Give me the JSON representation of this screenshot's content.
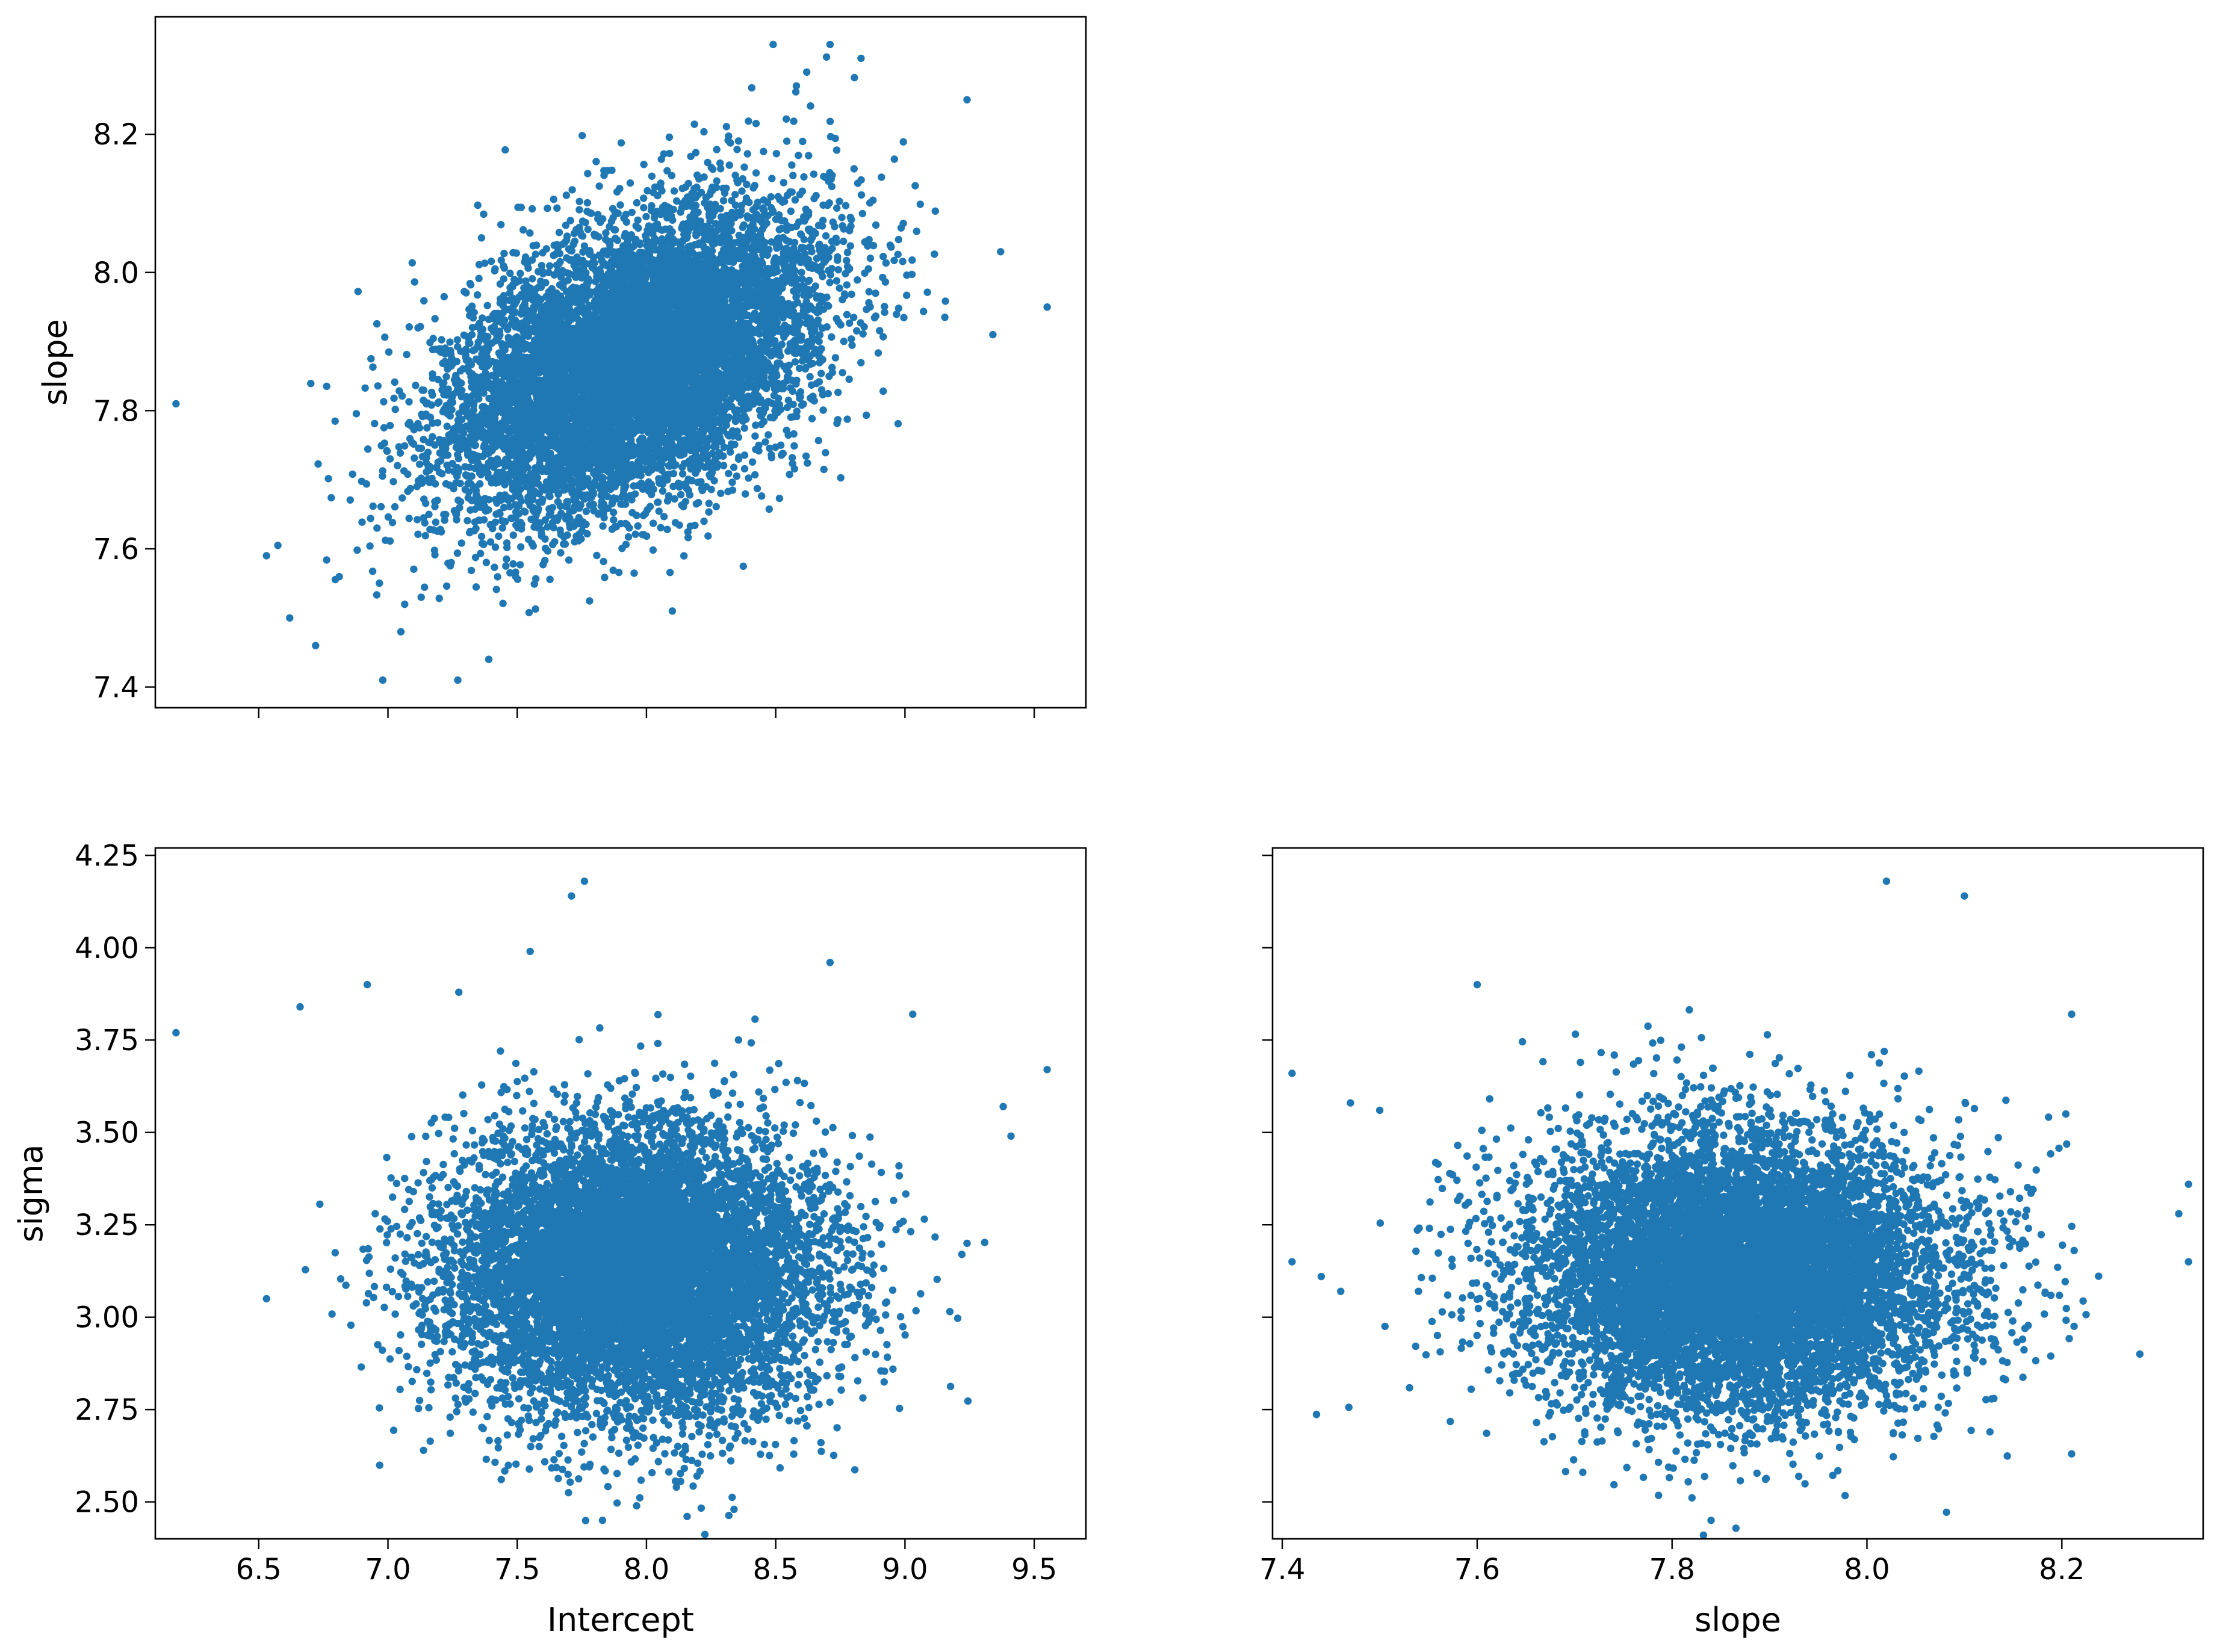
{
  "figure": {
    "point_color": "#1f77b4"
  },
  "chart_data": [
    {
      "id": "intercept_vs_slope",
      "type": "scatter",
      "title": "",
      "xlabel": "",
      "ylabel": "slope",
      "xlim": [
        6.1,
        9.7
      ],
      "ylim": [
        7.37,
        8.37
      ],
      "xticks": [
        6.5,
        7.0,
        7.5,
        8.0,
        8.5,
        9.0,
        9.5
      ],
      "xtick_labels": [
        "",
        "",
        "",
        "",
        "",
        "",
        ""
      ],
      "yticks": [
        7.4,
        7.6,
        7.8,
        8.0,
        8.2
      ],
      "ytick_labels": [
        "7.4",
        "7.6",
        "7.8",
        "8.0",
        "8.2"
      ],
      "grid": false,
      "legend": "none",
      "distribution": {
        "n": 9000,
        "x_mean": 7.95,
        "x_sd": 0.36,
        "y_mean": 7.87,
        "y_sd": 0.11,
        "correlation": 0.45,
        "seed": 11
      },
      "points": [
        [
          6.18,
          7.81
        ],
        [
          6.53,
          7.59
        ],
        [
          6.62,
          7.5
        ],
        [
          6.72,
          7.46
        ],
        [
          6.98,
          7.41
        ],
        [
          7.27,
          7.41
        ],
        [
          7.39,
          7.44
        ],
        [
          7.05,
          7.48
        ],
        [
          8.1,
          7.51
        ],
        [
          8.49,
          8.33
        ],
        [
          8.71,
          8.33
        ],
        [
          8.62,
          8.29
        ],
        [
          8.83,
          8.31
        ],
        [
          9.24,
          8.25
        ],
        [
          9.55,
          7.95
        ],
        [
          9.37,
          8.03
        ],
        [
          9.34,
          7.91
        ],
        [
          8.58,
          8.27
        ]
      ]
    },
    {
      "id": "intercept_vs_sigma",
      "type": "scatter",
      "title": "",
      "xlabel": "Intercept",
      "ylabel": "sigma",
      "xlim": [
        6.1,
        9.7
      ],
      "ylim": [
        2.4,
        4.27
      ],
      "xticks": [
        6.5,
        7.0,
        7.5,
        8.0,
        8.5,
        9.0,
        9.5
      ],
      "xtick_labels": [
        "6.5",
        "7.0",
        "7.5",
        "8.0",
        "8.5",
        "9.0",
        "9.5"
      ],
      "yticks": [
        2.5,
        2.75,
        3.0,
        3.25,
        3.5,
        3.75,
        4.0,
        4.25
      ],
      "ytick_labels": [
        "2.50",
        "2.75",
        "3.00",
        "3.25",
        "3.50",
        "3.75",
        "4.00",
        "4.25"
      ],
      "grid": false,
      "legend": "none",
      "distribution": {
        "n": 9000,
        "x_mean": 7.95,
        "x_sd": 0.36,
        "y_mean": 3.12,
        "y_sd": 0.19,
        "correlation": 0.0,
        "seed": 23
      },
      "points": [
        [
          6.18,
          3.77
        ],
        [
          6.53,
          3.05
        ],
        [
          6.66,
          3.84
        ],
        [
          6.92,
          3.9
        ],
        [
          7.71,
          4.14
        ],
        [
          7.76,
          4.18
        ],
        [
          7.83,
          2.45
        ],
        [
          9.55,
          3.67
        ],
        [
          9.38,
          3.57
        ],
        [
          9.41,
          3.49
        ],
        [
          9.24,
          3.2
        ],
        [
          9.22,
          3.17
        ],
        [
          8.71,
          3.96
        ],
        [
          7.55,
          3.99
        ],
        [
          9.03,
          3.82
        ]
      ]
    },
    {
      "id": "slope_vs_sigma",
      "type": "scatter",
      "title": "",
      "xlabel": "slope",
      "ylabel": "",
      "xlim": [
        7.39,
        8.345
      ],
      "ylim": [
        2.4,
        4.27
      ],
      "xticks": [
        7.4,
        7.6,
        7.8,
        8.0,
        8.2
      ],
      "xtick_labels": [
        "7.4",
        "7.6",
        "7.8",
        "8.0",
        "8.2"
      ],
      "yticks": [
        2.5,
        2.75,
        3.0,
        3.25,
        3.5,
        3.75,
        4.0,
        4.25
      ],
      "ytick_labels": [
        "",
        "",
        "",
        "",
        "",
        "",
        "",
        ""
      ],
      "grid": false,
      "legend": "none",
      "distribution": {
        "n": 9000,
        "x_mean": 7.87,
        "x_sd": 0.11,
        "y_mean": 3.12,
        "y_sd": 0.19,
        "correlation": 0.0,
        "seed": 37
      },
      "points": [
        [
          7.41,
          3.15
        ],
        [
          7.41,
          3.66
        ],
        [
          7.44,
          3.11
        ],
        [
          7.46,
          3.07
        ],
        [
          7.47,
          3.58
        ],
        [
          7.5,
          3.56
        ],
        [
          8.02,
          4.18
        ],
        [
          8.1,
          4.14
        ],
        [
          7.84,
          2.45
        ],
        [
          8.33,
          3.36
        ],
        [
          8.33,
          3.15
        ],
        [
          8.32,
          3.28
        ],
        [
          8.21,
          2.63
        ],
        [
          8.28,
          2.9
        ],
        [
          7.6,
          3.9
        ],
        [
          8.21,
          3.82
        ]
      ]
    }
  ]
}
